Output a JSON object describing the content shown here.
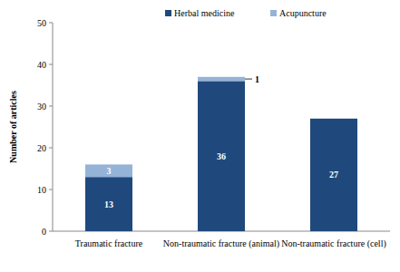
{
  "chart_data": {
    "type": "bar",
    "stacked": true,
    "y_label": "Number of articles",
    "categories": [
      "Traumatic fracture",
      "Non-traumatic fracture (animal)",
      "Non-traumatic fracture (cell)"
    ],
    "series": [
      {
        "name": "Herbal medicine",
        "color": "#1f497d",
        "values": [
          13,
          36,
          27
        ]
      },
      {
        "name": "Acupuncture",
        "color": "#95b3d7",
        "values": [
          3,
          1,
          null
        ]
      }
    ],
    "ylim": [
      0,
      50
    ],
    "yticks": [
      0,
      10,
      20,
      30,
      40,
      50
    ],
    "legend": "top",
    "data_labels": true,
    "grid": false
  }
}
